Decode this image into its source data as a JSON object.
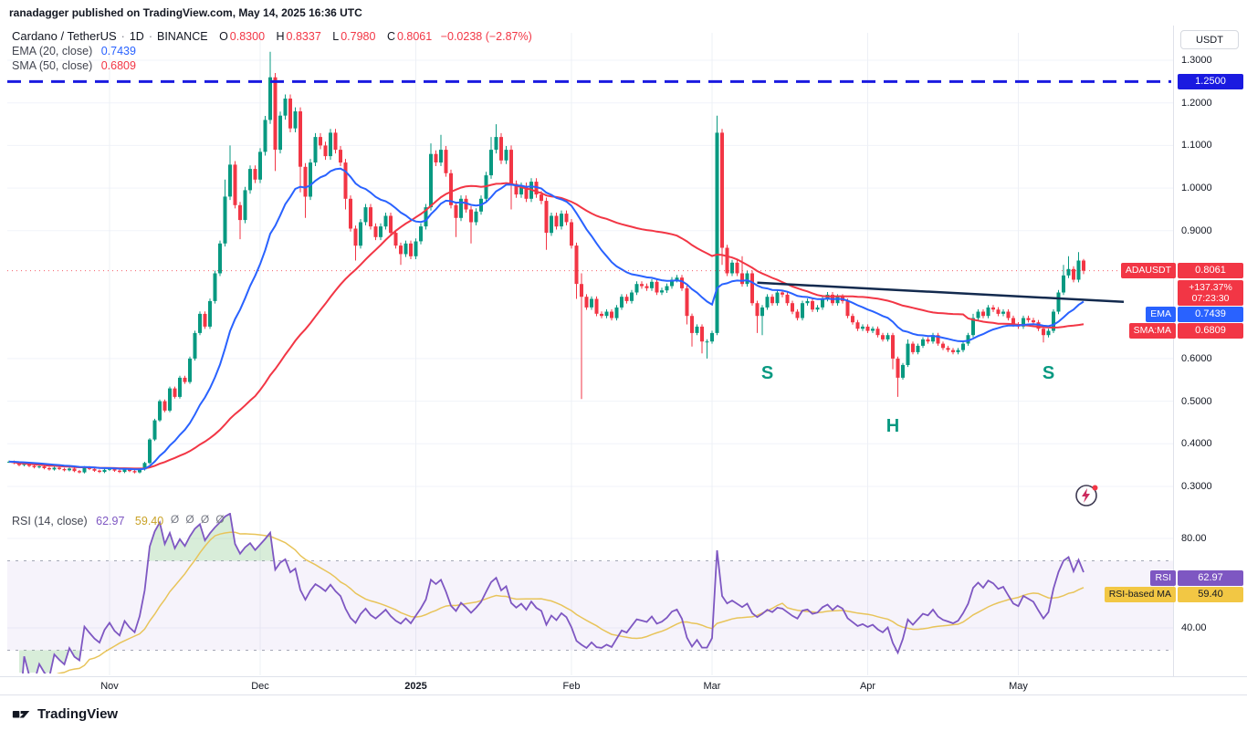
{
  "page": {
    "publisher_line": "ranadagger published on TradingView.com, May 14, 2025 16:36 UTC",
    "footer_logo": "TradingView"
  },
  "legend": {
    "symbol": "Cardano / TetherUS",
    "separator": "·",
    "interval": "1D",
    "exchange": "BINANCE",
    "ohlc": {
      "o_label": "O",
      "o": "0.8300",
      "h_label": "H",
      "h": "0.8337",
      "l_label": "L",
      "l": "0.7980",
      "c_label": "C",
      "c": "0.8061",
      "change": "−0.0238 (−2.87%)"
    },
    "ema": {
      "label": "EMA (20, close)",
      "value": "0.7439"
    },
    "sma": {
      "label": "SMA (50, close)",
      "value": "0.6809"
    }
  },
  "rsi_legend": {
    "label": "RSI (14, close)",
    "value": "62.97",
    "ma_value": "59.40",
    "overflow_marker": "Ø"
  },
  "axis": {
    "unit": "USDT",
    "level_badge": "1.2500",
    "symbol_badge": {
      "tag": "ADAUSDT",
      "value": "0.8061"
    },
    "countdown": {
      "pct": "+137.37%",
      "time": "07:23:30"
    },
    "ema_badge": {
      "tag": "EMA",
      "value": "0.7439"
    },
    "sma_badge": {
      "tag": "SMA:MA",
      "value": "0.6809"
    },
    "rsi_badge": {
      "tag": "RSI",
      "value": "62.97"
    },
    "rsi_ma_badge": {
      "tag": "RSI-based MA",
      "value": "59.40"
    }
  },
  "chart_data": {
    "type": "candlestick",
    "title": "Cardano / TetherUS · 1D · BINANCE",
    "symbol": "ADAUSDT",
    "interval": "1D",
    "exchange": "BINANCE",
    "last_ohlc": {
      "o": 0.83,
      "h": 0.8337,
      "l": 0.798,
      "c": 0.8061,
      "change": -0.0238,
      "change_pct": -2.87
    },
    "price_range": [
      0.28,
      1.345
    ],
    "y_axis": {
      "ticks": [
        {
          "p": 1.3,
          "label": "1.3000"
        },
        {
          "p": 1.2,
          "label": "1.2000"
        },
        {
          "p": 1.1,
          "label": "1.1000"
        },
        {
          "p": 1.0,
          "label": "1.0000"
        },
        {
          "p": 0.9,
          "label": "0.9000"
        },
        {
          "p": 0.6,
          "label": "0.6000"
        },
        {
          "p": 0.5,
          "label": "0.5000"
        },
        {
          "p": 0.4,
          "label": "0.4000"
        },
        {
          "p": 0.3,
          "label": "0.3000"
        }
      ]
    },
    "rsi_axis": {
      "ticks": [
        {
          "v": 80,
          "label": "80.00"
        },
        {
          "v": 40,
          "label": "40.00"
        }
      ],
      "band": [
        30,
        70
      ]
    },
    "x_axis": {
      "labels": [
        {
          "i": 20,
          "label": "Nov"
        },
        {
          "i": 50,
          "label": "Dec"
        },
        {
          "i": 81,
          "label": "2025",
          "bold": true
        },
        {
          "i": 112,
          "label": "Feb"
        },
        {
          "i": 140,
          "label": "Mar"
        },
        {
          "i": 171,
          "label": "Apr"
        },
        {
          "i": 201,
          "label": "May"
        }
      ]
    },
    "series": {
      "ema_period": 20,
      "sma_period": 50,
      "rsi_period": 14,
      "rsi_ma_period": 14,
      "ema_last": 0.7439,
      "sma_last": 0.6809,
      "rsi_last": 62.97,
      "rsi_ma_last": 59.4
    },
    "level_line": {
      "price": 1.25,
      "style": "dashed",
      "color": "#1a1ae0"
    },
    "last_price_line": {
      "price": 0.8061
    },
    "trendline": {
      "i1": 149,
      "p1": 0.778,
      "i2": 222,
      "p2": 0.733,
      "color": "#132a4e"
    },
    "pattern_labels": [
      {
        "text": "S",
        "i": 151,
        "p": 0.568
      },
      {
        "text": "H",
        "i": 176,
        "p": 0.444
      },
      {
        "text": "S",
        "i": 207,
        "p": 0.568
      }
    ],
    "rsi_overflow_markers": [
      33,
      36,
      39,
      42
    ],
    "colors": {
      "up": "#089981",
      "down": "#f23645",
      "ema": "#2962ff",
      "sma": "#f23645",
      "rsi": "#7e57c2",
      "rsi_ma": "#e8c45a",
      "band_fill": "rgba(126,87,194,0.07)",
      "overbought_fill": "rgba(76,175,80,0.22)"
    },
    "candles": {
      "closes": [
        0.358,
        0.355,
        0.35,
        0.353,
        0.348,
        0.345,
        0.347,
        0.343,
        0.34,
        0.344,
        0.341,
        0.338,
        0.342,
        0.336,
        0.333,
        0.345,
        0.341,
        0.337,
        0.334,
        0.339,
        0.342,
        0.337,
        0.334,
        0.34,
        0.336,
        0.333,
        0.34,
        0.355,
        0.41,
        0.455,
        0.5,
        0.478,
        0.53,
        0.51,
        0.555,
        0.545,
        0.6,
        0.66,
        0.705,
        0.675,
        0.735,
        0.8,
        0.87,
        0.98,
        1.055,
        0.96,
        0.925,
        0.995,
        1.045,
        1.02,
        1.085,
        1.16,
        1.26,
        1.09,
        1.17,
        1.21,
        1.14,
        1.18,
        1.05,
        0.98,
        1.06,
        1.12,
        1.1,
        1.075,
        1.13,
        1.09,
        1.06,
        0.975,
        0.905,
        0.865,
        0.92,
        0.955,
        0.91,
        0.885,
        0.91,
        0.935,
        0.895,
        0.865,
        0.845,
        0.87,
        0.84,
        0.875,
        0.91,
        0.955,
        1.08,
        1.06,
        1.09,
        1.035,
        0.96,
        0.93,
        0.975,
        0.95,
        0.92,
        0.945,
        0.975,
        1.03,
        1.09,
        1.12,
        1.065,
        1.09,
        1.01,
        0.985,
        1.005,
        0.975,
        1.015,
        0.985,
        0.97,
        0.895,
        0.935,
        0.91,
        0.94,
        0.92,
        0.865,
        0.775,
        0.745,
        0.72,
        0.74,
        0.705,
        0.7,
        0.71,
        0.695,
        0.72,
        0.745,
        0.735,
        0.755,
        0.775,
        0.77,
        0.765,
        0.78,
        0.755,
        0.76,
        0.77,
        0.785,
        0.79,
        0.765,
        0.7,
        0.66,
        0.675,
        0.64,
        0.64,
        0.66,
        1.13,
        0.86,
        0.8,
        0.825,
        0.8,
        0.775,
        0.8,
        0.73,
        0.7,
        0.72,
        0.745,
        0.73,
        0.755,
        0.75,
        0.73,
        0.71,
        0.695,
        0.73,
        0.735,
        0.715,
        0.72,
        0.74,
        0.75,
        0.73,
        0.745,
        0.735,
        0.7,
        0.685,
        0.67,
        0.675,
        0.665,
        0.67,
        0.655,
        0.645,
        0.655,
        0.6,
        0.555,
        0.585,
        0.635,
        0.615,
        0.63,
        0.645,
        0.64,
        0.655,
        0.635,
        0.625,
        0.62,
        0.615,
        0.62,
        0.635,
        0.655,
        0.695,
        0.71,
        0.7,
        0.72,
        0.715,
        0.705,
        0.71,
        0.695,
        0.68,
        0.675,
        0.695,
        0.69,
        0.685,
        0.67,
        0.655,
        0.665,
        0.71,
        0.755,
        0.795,
        0.81,
        0.785,
        0.83,
        0.8061
      ],
      "overrides": {
        "43": {
          "h": 1.02
        },
        "44": {
          "h": 1.1
        },
        "46": {
          "l": 0.88
        },
        "52": {
          "h": 1.32
        },
        "53": {
          "l": 1.04
        },
        "58": {
          "l": 0.99
        },
        "59": {
          "l": 0.93
        },
        "67": {
          "l": 0.95
        },
        "69": {
          "l": 0.83
        },
        "78": {
          "l": 0.82
        },
        "84": {
          "h": 1.105
        },
        "86": {
          "h": 1.125
        },
        "89": {
          "l": 0.885
        },
        "92": {
          "l": 0.87
        },
        "96": {
          "h": 1.12
        },
        "97": {
          "h": 1.15
        },
        "100": {
          "h": 1.1,
          "l": 0.95
        },
        "107": {
          "l": 0.855
        },
        "113": {
          "l": 0.74
        },
        "114": {
          "h": 0.8,
          "l": 0.505
        },
        "135": {
          "l": 0.68
        },
        "136": {
          "l": 0.628
        },
        "138": {
          "l": 0.612
        },
        "139": {
          "l": 0.6
        },
        "141": {
          "h": 1.17
        },
        "142": {
          "l": 0.82
        },
        "146": {
          "h": 0.84
        },
        "149": {
          "l": 0.66
        },
        "150": {
          "l": 0.655
        },
        "176": {
          "l": 0.575
        },
        "177": {
          "l": 0.51
        },
        "179": {
          "h": 0.645
        },
        "192": {
          "h": 0.705
        },
        "206": {
          "l": 0.638
        },
        "210": {
          "h": 0.82
        },
        "211": {
          "h": 0.84
        },
        "213": {
          "h": 0.85
        },
        "214": {
          "o": 0.83,
          "h": 0.8337,
          "l": 0.798
        }
      }
    }
  }
}
